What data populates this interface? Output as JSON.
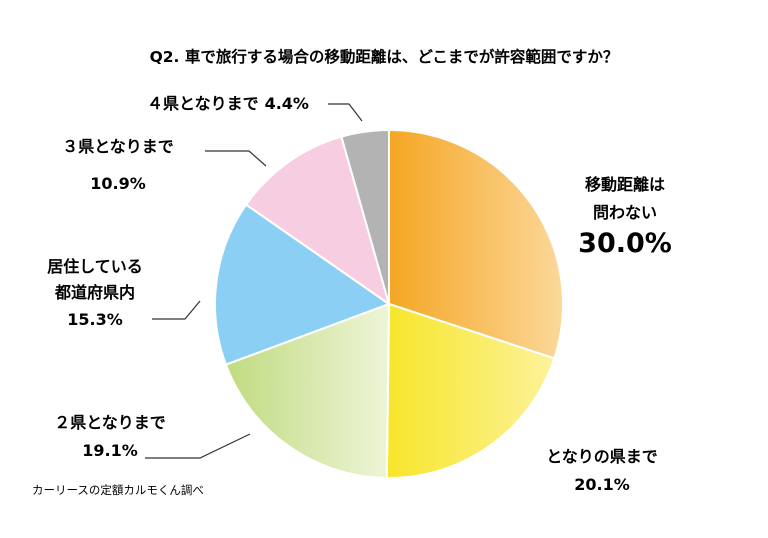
{
  "chart_data": {
    "type": "pie",
    "title": "Q2. 車で旅行する場合の移動距離は、どこまでが許容範囲ですか？",
    "source": "カーリースの定額カルモくん調べ",
    "slices": [
      {
        "label_lines": [
          "移動距離は",
          "問わない"
        ],
        "value_text": "30.0%",
        "value": 30.0,
        "color": "#f5a623",
        "color_light": "#fbd89a"
      },
      {
        "label_lines": [
          "となりの県まで"
        ],
        "value_text": "20.1%",
        "value": 20.1,
        "color": "#f7e62c",
        "color_light": "#fdf3a0"
      },
      {
        "label_lines": [
          "２県となりまで"
        ],
        "value_text": "19.1%",
        "value": 19.1,
        "color": "#c2dc84",
        "color_light": "#eef5d8"
      },
      {
        "label_lines": [
          "居住している",
          "都道府県内"
        ],
        "value_text": "15.3%",
        "value": 15.3,
        "color": "#8ccff5",
        "color_light": "#8ccff5"
      },
      {
        "label_lines": [
          "３県となりまで"
        ],
        "value_text": "10.9%",
        "value": 10.9,
        "color": "#f7cde1",
        "color_light": "#f7cde1"
      },
      {
        "label_lines": [
          "４県となりまで"
        ],
        "value_text": "4.4%",
        "value": 4.4,
        "color": "#b3b3b3",
        "color_light": "#b3b3b3"
      }
    ]
  }
}
